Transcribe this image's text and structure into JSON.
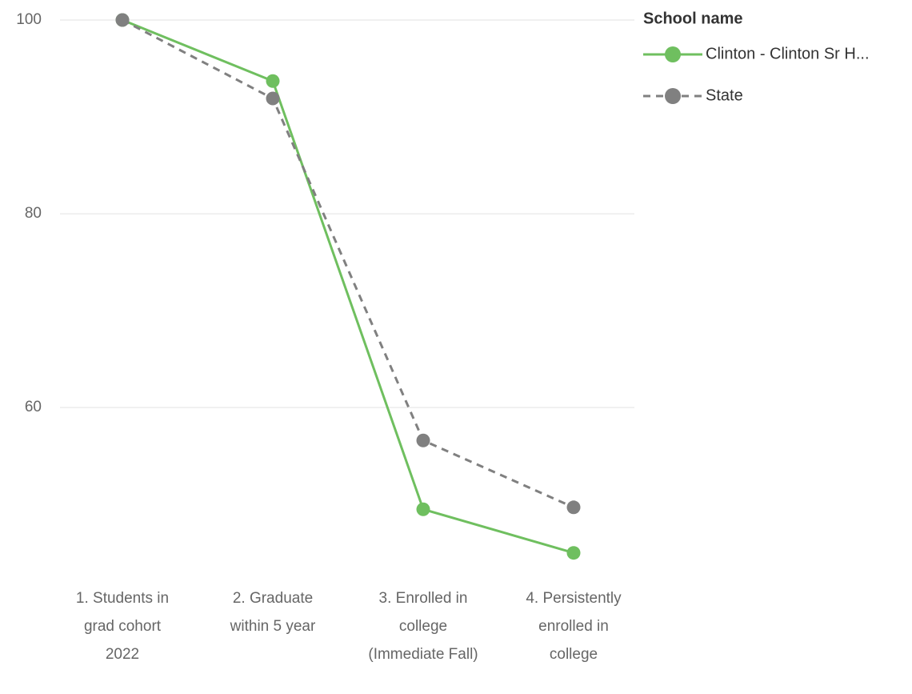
{
  "chart_data": {
    "type": "line",
    "categories": [
      "1. Students in grad cohort 2022",
      "2. Graduate within 5 year",
      "3. Enrolled in college (Immediate Fall)",
      "4. Persistently enrolled in college"
    ],
    "series": [
      {
        "name": "Clinton - Clinton Sr H...",
        "color": "#6fbf5f",
        "dashed": false,
        "values": [
          100,
          93.7,
          49.5,
          45.0
        ]
      },
      {
        "name": "State",
        "color": "#808080",
        "dashed": true,
        "values": [
          100,
          91.9,
          56.6,
          49.7
        ]
      }
    ],
    "ylim": [
      42,
      100
    ],
    "yticks": [
      60,
      80,
      100
    ],
    "grid": true,
    "legend": {
      "title": "School name",
      "position": "top-right"
    }
  }
}
